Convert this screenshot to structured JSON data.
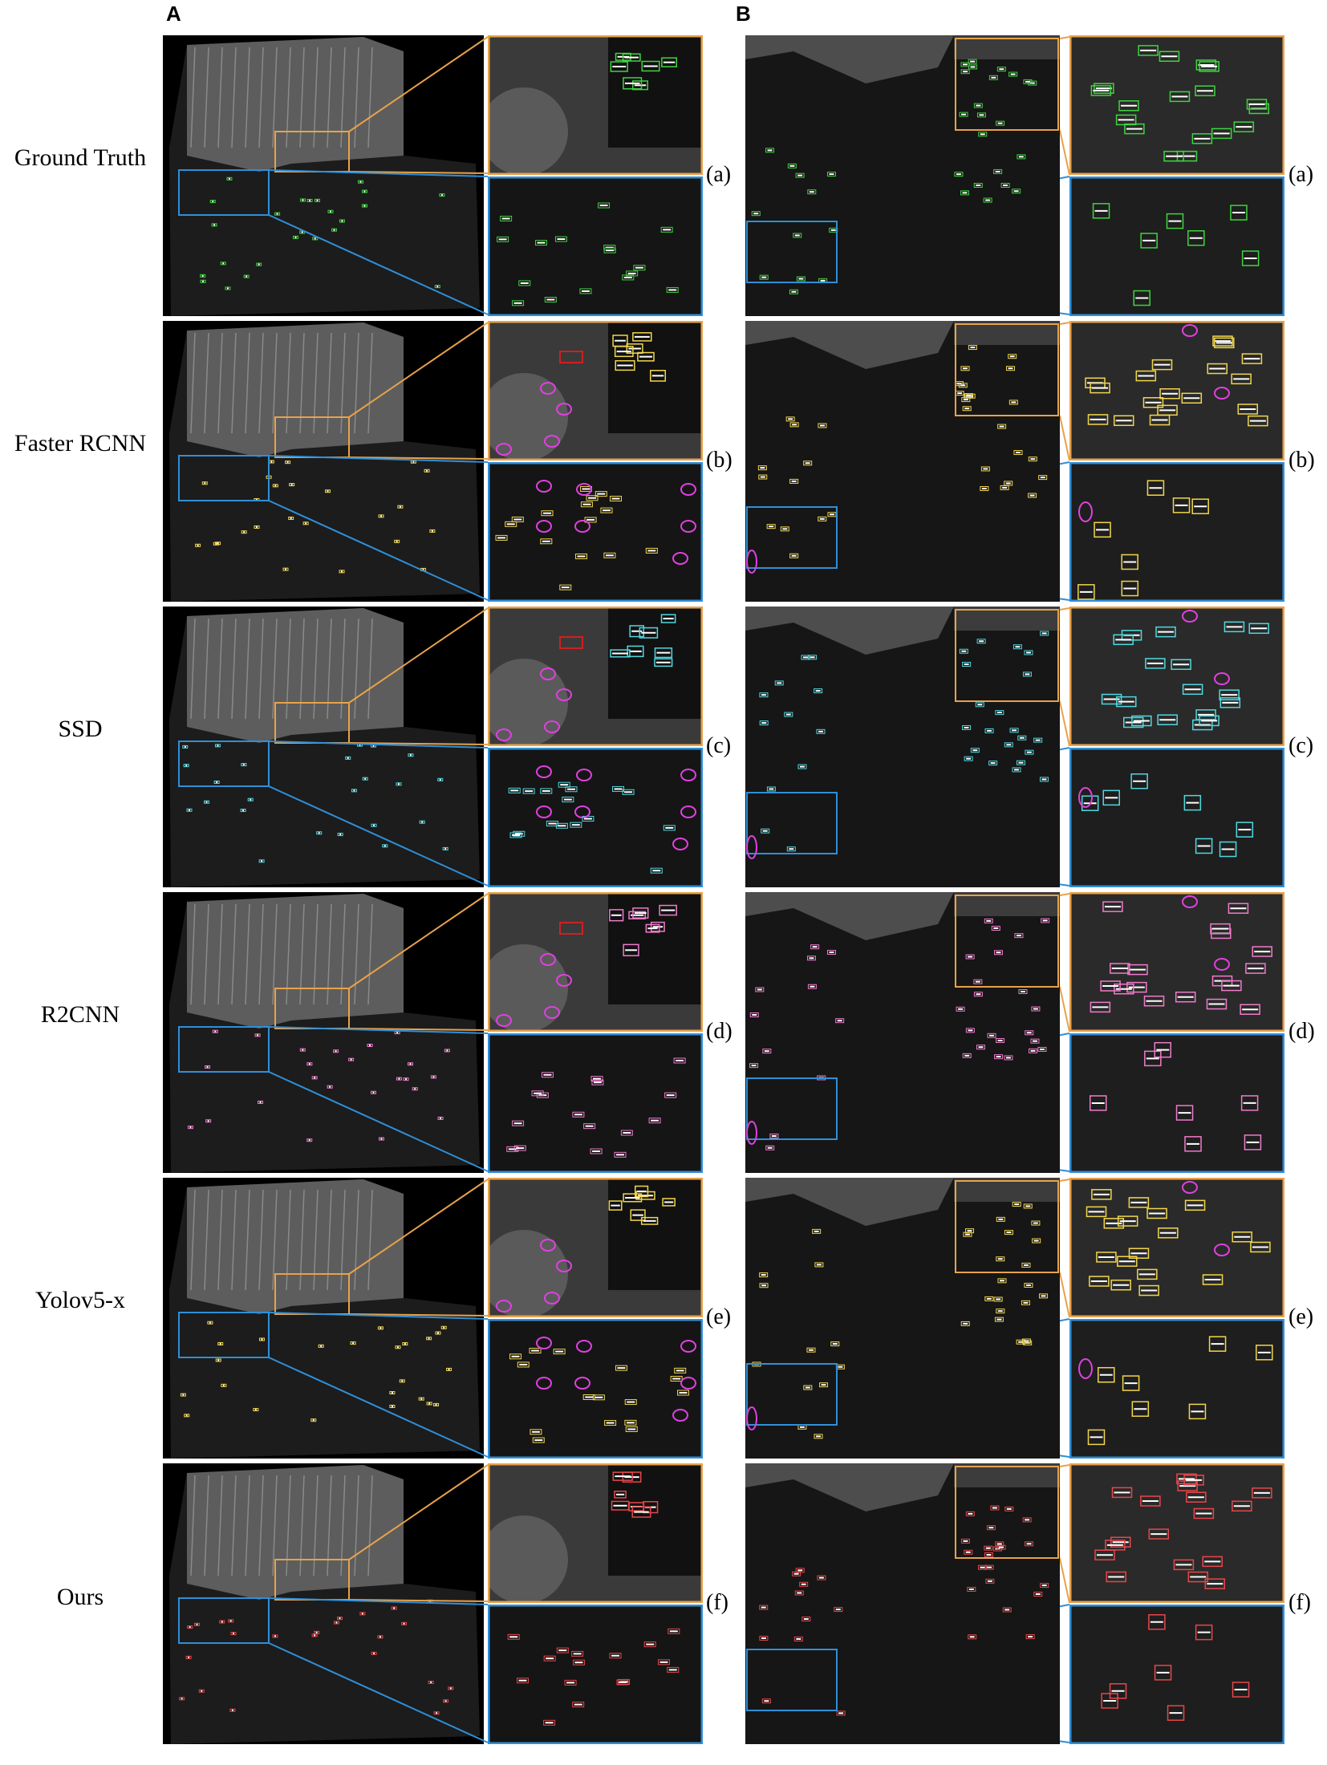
{
  "panel_letters": [
    "A",
    "B"
  ],
  "colors": {
    "orange_frame": "#E8A24A",
    "blue_frame": "#2F8FD8",
    "miss_marker": "#E040E0",
    "false_alarm_marker": "#D02020"
  },
  "rows": [
    {
      "method": "Ground Truth",
      "tag_a": "(a)",
      "tag_b": "(a)",
      "box_color": "#3FD43F"
    },
    {
      "method": "Faster RCNN",
      "tag_a": "(b)",
      "tag_b": "(b)",
      "box_color": "#F2D64B"
    },
    {
      "method": "SSD",
      "tag_a": "(c)",
      "tag_b": "(c)",
      "box_color": "#4FD8E0"
    },
    {
      "method": "R2CNN",
      "tag_a": "(d)",
      "tag_b": "(d)",
      "box_color": "#F07ACB"
    },
    {
      "method": "Yolov5-x",
      "tag_a": "(e)",
      "tag_b": "(e)",
      "box_color": "#F2D64B"
    },
    {
      "method": "Ours",
      "tag_a": "(f)",
      "tag_b": "(f)",
      "box_color": "#E8464A"
    }
  ]
}
